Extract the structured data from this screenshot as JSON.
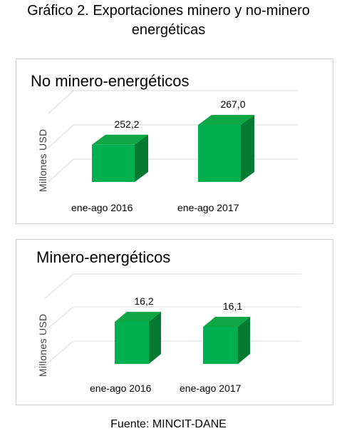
{
  "title": {
    "line1": "Gráfico 2. Exportaciones minero y no-minero",
    "line2": "energéticas"
  },
  "footer": "Fuente: MINCIT-DANE",
  "colors": {
    "bar_front": "#00b050",
    "bar_top": "#0fa646",
    "bar_side": "#057a32",
    "grid": "#d9d9d9"
  },
  "chart_data": [
    {
      "type": "bar",
      "title": "No minero-energéticos",
      "ylabel": "Millones USD",
      "categories": [
        "ene-ago 2016",
        "ene-ago 2017"
      ],
      "values": [
        252.2,
        267.0
      ],
      "data_labels": [
        "252,2",
        "267,0"
      ],
      "grid": true,
      "legend": "none"
    },
    {
      "type": "bar",
      "title": "Minero-energéticos",
      "ylabel": "Millones USD",
      "categories": [
        "ene-ago 2016",
        "ene-ago 2017"
      ],
      "values": [
        16.2,
        16.1
      ],
      "data_labels": [
        "16,2",
        "16,1"
      ],
      "grid": true,
      "legend": "none"
    }
  ]
}
